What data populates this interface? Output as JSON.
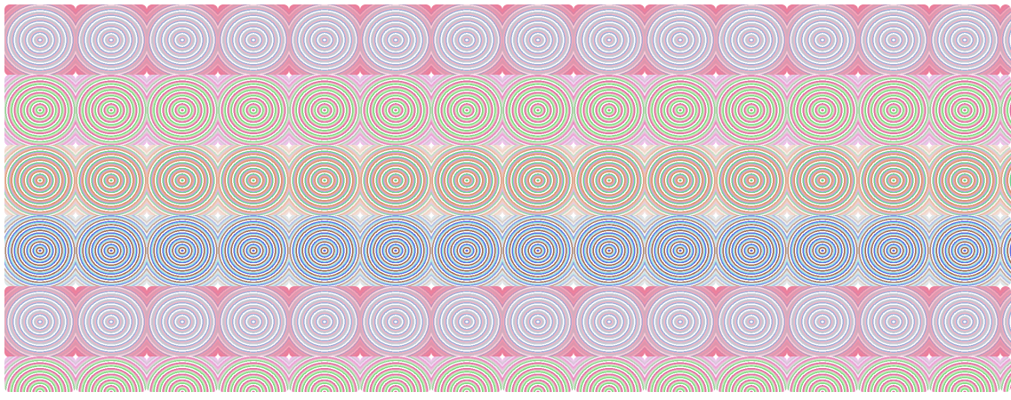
{
  "pattern": {
    "columns": 14,
    "rows": 2,
    "cells": [
      {
        "name": "grey-blue",
        "base": "#c3c7d2",
        "rings": [
          "#ffffff",
          "#9fb0d8",
          "#f0b8c8",
          "#c8cdd6"
        ],
        "edge": "#f07090",
        "corner": "#4a6fb0"
      },
      {
        "name": "pink-green",
        "base": "#c8f0c0",
        "rings": [
          "#e070a0",
          "#ffffff",
          "#80d880",
          "#f0a0c0"
        ],
        "edge": "#f0c0f0",
        "corner": "#5ad060"
      },
      {
        "name": "green-orange",
        "base": "#e8b0a0",
        "rings": [
          "#70d090",
          "#ffffff",
          "#d89070",
          "#c0a0f0"
        ],
        "edge": "#f8e8e0",
        "corner": "#b07840"
      },
      {
        "name": "blue-brown",
        "base": "#d8d8e8",
        "rings": [
          "#6070e0",
          "#ffffff",
          "#a07050",
          "#80f0e0"
        ],
        "edge": "#e8e8e8",
        "corner": "#c8c8c8"
      }
    ]
  }
}
